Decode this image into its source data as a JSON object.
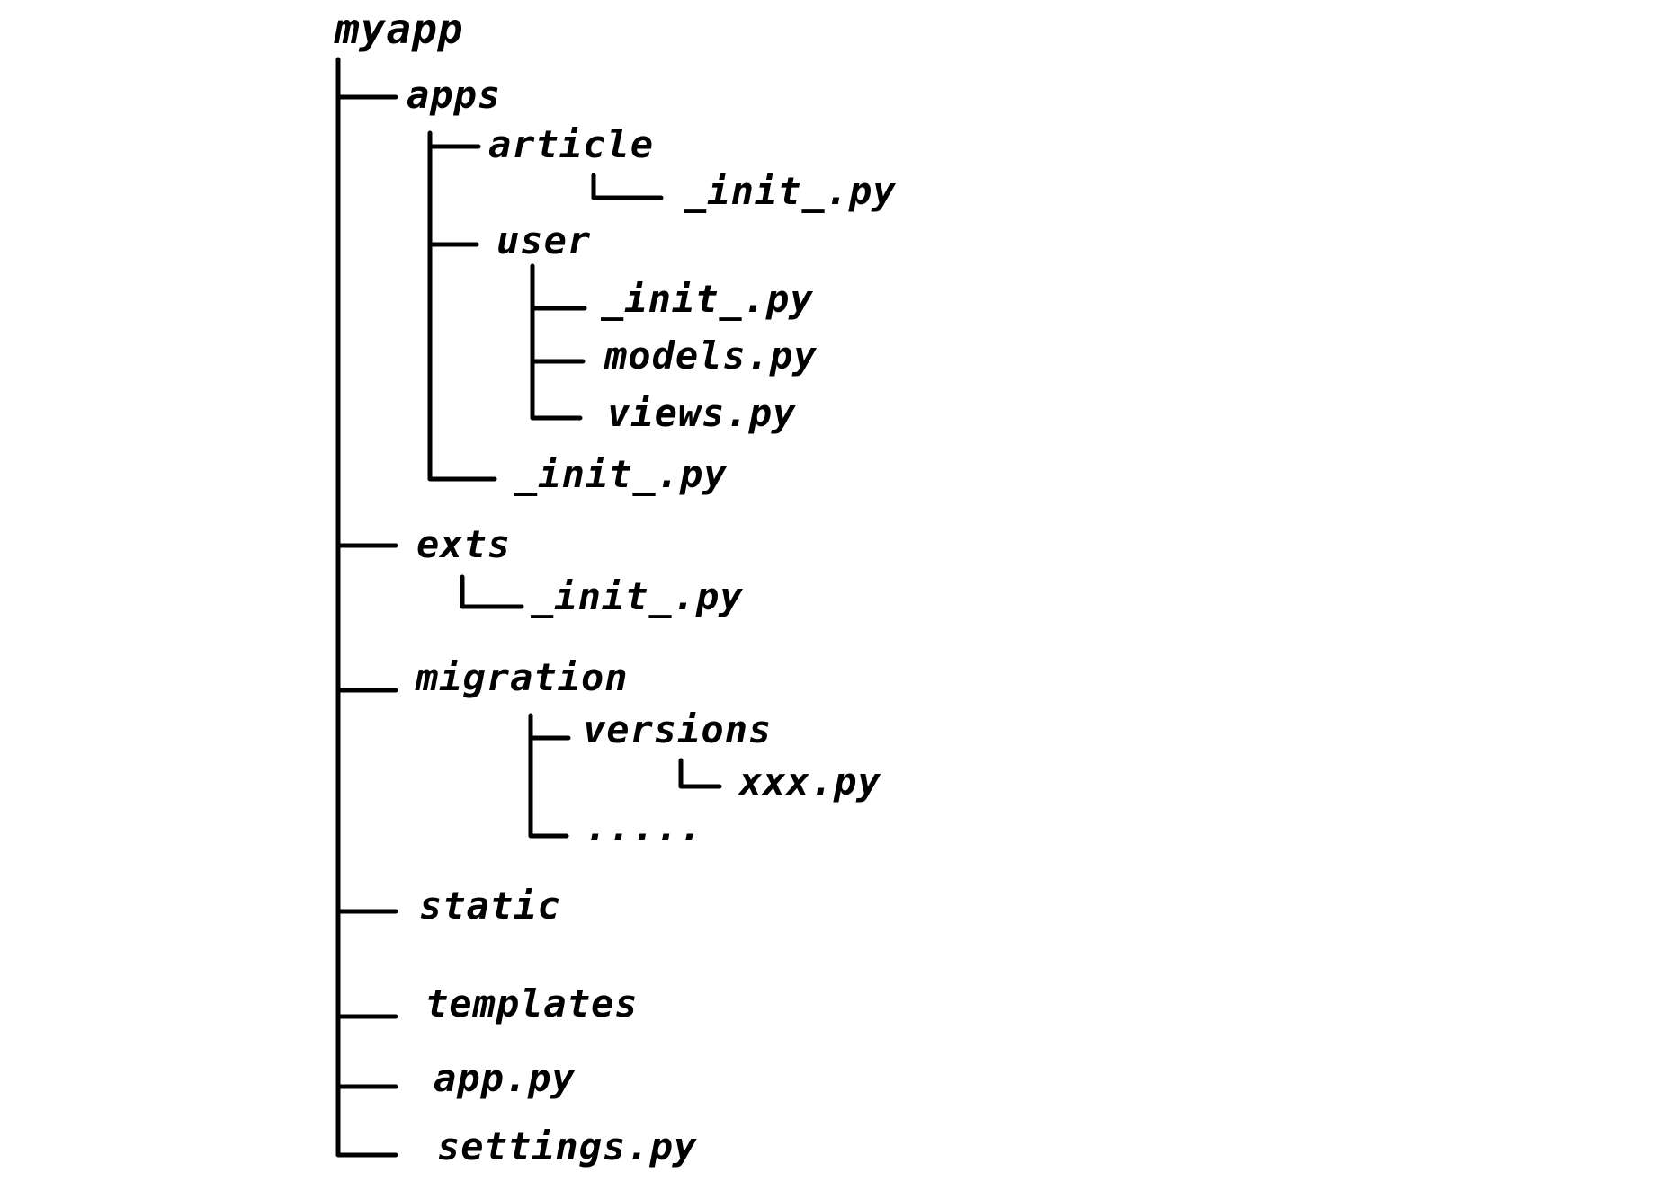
{
  "tree": {
    "root": "myapp",
    "apps": "apps",
    "article": "article",
    "article_init": "_init_.py",
    "user": "user",
    "user_init": "_init_.py",
    "user_models": "models.py",
    "user_views": "views.py",
    "apps_init": "_init_.py",
    "exts": "exts",
    "exts_init": "_init_.py",
    "migration": "migration",
    "versions": "versions",
    "versions_file": "xxx.py",
    "migration_more": ".....",
    "static": "static",
    "templates": "templates",
    "app_py": "app.py",
    "settings_py": "settings.py"
  }
}
